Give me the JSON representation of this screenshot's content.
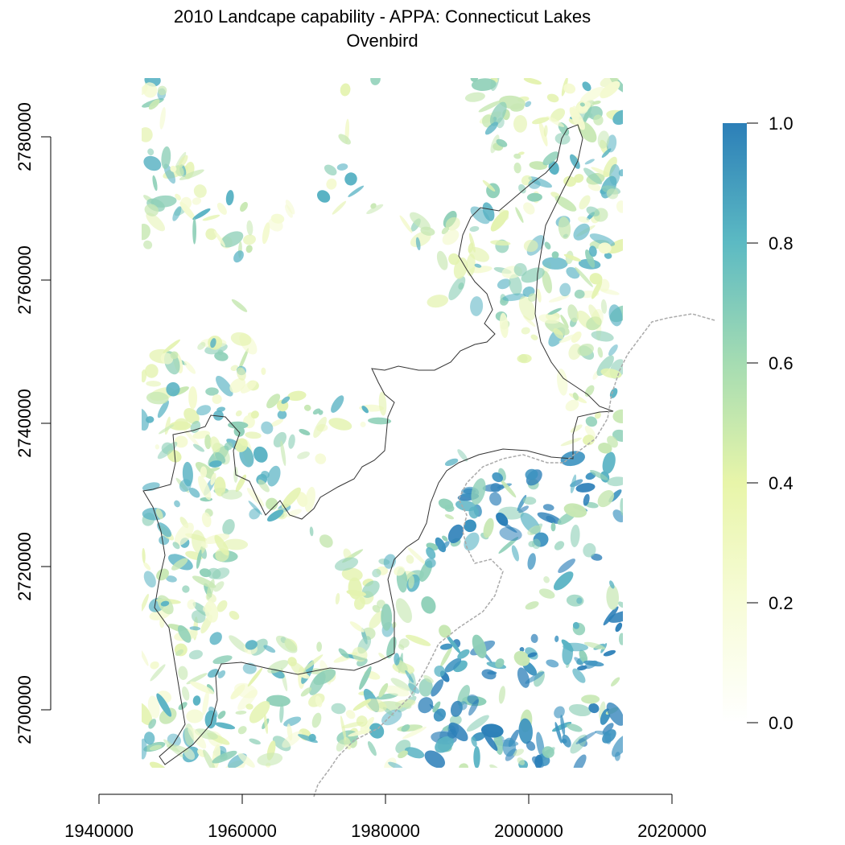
{
  "title": "2010 Landcape capability - APPA: Connecticut Lakes",
  "subtitle": "Ovenbird",
  "map": {
    "x_ticks": [
      "1940000",
      "1960000",
      "1980000",
      "2000000",
      "2020000"
    ],
    "y_ticks": [
      "2700000",
      "2720000",
      "2740000",
      "2760000",
      "2780000"
    ],
    "x_range": [
      1940000,
      2020000
    ],
    "y_range": [
      2700000,
      2780000
    ]
  },
  "legend": {
    "ticks": [
      "0.0",
      "0.2",
      "0.4",
      "0.6",
      "0.8",
      "1.0"
    ],
    "colors": [
      "#ffffff",
      "#f7fcd8",
      "#e8f5a9",
      "#a5dcb2",
      "#5cbac3",
      "#2c7fb8"
    ]
  },
  "colors": {
    "boundary": "#333333",
    "state_line": "#aaaaaa",
    "low": "#eaf5b8",
    "mid": "#8fd0b8",
    "high": "#2c7fb8"
  }
}
